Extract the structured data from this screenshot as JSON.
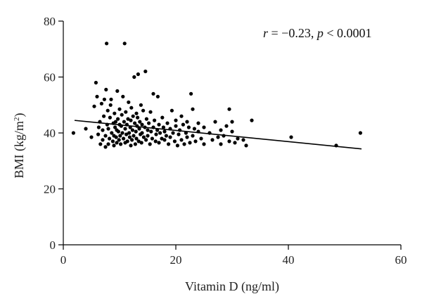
{
  "chart_data": {
    "type": "scatter",
    "title": "",
    "xlabel": "Vitamin D (ng/ml)",
    "ylabel_main": "BMI (kg/m",
    "ylabel_sup": "2",
    "ylabel_close": ")",
    "xlim": [
      0,
      60
    ],
    "ylim": [
      0,
      80
    ],
    "xticks": [
      0,
      20,
      40,
      60
    ],
    "yticks": [
      0,
      20,
      40,
      60,
      80
    ],
    "grid": false,
    "annotation": {
      "r_symbol": "r",
      "r_text": " = −0.23, ",
      "p_symbol": "p",
      "p_text": " < 0.0001"
    },
    "trendline": {
      "x": [
        2,
        53
      ],
      "y": [
        44.5,
        34.3
      ]
    },
    "point_color": "#000000",
    "series": [
      {
        "points": [
          [
            1.8,
            40
          ],
          [
            4,
            41.5
          ],
          [
            5,
            38.5
          ],
          [
            5.5,
            49.5
          ],
          [
            5.8,
            58
          ],
          [
            6,
            53
          ],
          [
            6.2,
            39.5
          ],
          [
            6.3,
            42
          ],
          [
            6.5,
            44
          ],
          [
            6.6,
            36
          ],
          [
            6.8,
            50.5
          ],
          [
            7,
            37.5
          ],
          [
            7,
            41
          ],
          [
            7.2,
            46
          ],
          [
            7.3,
            52
          ],
          [
            7.5,
            35
          ],
          [
            7.5,
            39
          ],
          [
            7.6,
            55.5
          ],
          [
            7.7,
            72
          ],
          [
            7.8,
            43
          ],
          [
            7.9,
            48
          ],
          [
            8,
            36
          ],
          [
            8,
            41.5
          ],
          [
            8.2,
            38
          ],
          [
            8.3,
            45.5
          ],
          [
            8.4,
            50
          ],
          [
            8.5,
            52
          ],
          [
            8.6,
            40
          ],
          [
            8.8,
            37
          ],
          [
            8.9,
            43.5
          ],
          [
            9,
            35.5
          ],
          [
            9,
            39
          ],
          [
            9.1,
            47
          ],
          [
            9.2,
            42
          ],
          [
            9.3,
            44
          ],
          [
            9.4,
            38.5
          ],
          [
            9.5,
            36.5
          ],
          [
            9.5,
            41
          ],
          [
            9.6,
            55
          ],
          [
            9.7,
            45
          ],
          [
            9.8,
            40.5
          ],
          [
            9.9,
            37.5
          ],
          [
            10,
            43
          ],
          [
            10,
            48.5
          ],
          [
            10.1,
            39
          ],
          [
            10.2,
            36
          ],
          [
            10.3,
            42.5
          ],
          [
            10.4,
            46.5
          ],
          [
            10.5,
            40
          ],
          [
            10.6,
            53
          ],
          [
            10.7,
            38
          ],
          [
            10.8,
            44
          ],
          [
            10.9,
            72
          ],
          [
            11,
            36.5
          ],
          [
            11,
            41.5
          ],
          [
            11.1,
            47.5
          ],
          [
            11.2,
            39.5
          ],
          [
            11.3,
            43
          ],
          [
            11.4,
            37
          ],
          [
            11.5,
            45
          ],
          [
            11.6,
            51
          ],
          [
            11.7,
            40
          ],
          [
            11.8,
            38.5
          ],
          [
            11.9,
            42
          ],
          [
            12,
            35.5
          ],
          [
            12,
            44.5
          ],
          [
            12.1,
            49
          ],
          [
            12.2,
            37.5
          ],
          [
            12.3,
            41
          ],
          [
            12.4,
            46
          ],
          [
            12.5,
            39
          ],
          [
            12.6,
            60
          ],
          [
            12.7,
            43.5
          ],
          [
            12.8,
            36
          ],
          [
            12.9,
            40.5
          ],
          [
            13,
            47
          ],
          [
            13,
            38
          ],
          [
            13.1,
            42.5
          ],
          [
            13.2,
            45.5
          ],
          [
            13.3,
            61
          ],
          [
            13.4,
            37
          ],
          [
            13.5,
            41.5
          ],
          [
            13.6,
            44
          ],
          [
            13.7,
            39.5
          ],
          [
            13.8,
            50
          ],
          [
            13.9,
            36.5
          ],
          [
            14,
            43
          ],
          [
            14,
            40
          ],
          [
            14.2,
            48
          ],
          [
            14.3,
            38.5
          ],
          [
            14.5,
            42
          ],
          [
            14.6,
            62
          ],
          [
            14.7,
            37.5
          ],
          [
            14.8,
            45
          ],
          [
            15,
            39
          ],
          [
            15,
            41
          ],
          [
            15.2,
            43.5
          ],
          [
            15.4,
            36
          ],
          [
            15.5,
            47.5
          ],
          [
            15.6,
            40.5
          ],
          [
            15.8,
            38
          ],
          [
            16,
            54
          ],
          [
            16,
            42
          ],
          [
            16.2,
            44.5
          ],
          [
            16.4,
            37
          ],
          [
            16.5,
            39.5
          ],
          [
            16.7,
            41
          ],
          [
            16.8,
            53
          ],
          [
            17,
            36.5
          ],
          [
            17,
            43
          ],
          [
            17.2,
            40
          ],
          [
            17.5,
            38
          ],
          [
            17.6,
            45.5
          ],
          [
            17.8,
            42
          ],
          [
            18,
            37.5
          ],
          [
            18,
            40.5
          ],
          [
            18.3,
            39
          ],
          [
            18.5,
            43.5
          ],
          [
            18.7,
            36
          ],
          [
            19,
            41.5
          ],
          [
            19,
            38.5
          ],
          [
            19.3,
            48
          ],
          [
            19.5,
            40
          ],
          [
            19.8,
            37
          ],
          [
            20,
            42.5
          ],
          [
            20,
            44.5
          ],
          [
            20.3,
            35.5
          ],
          [
            20.5,
            39.5
          ],
          [
            20.7,
            41
          ],
          [
            21,
            37.5
          ],
          [
            21,
            46
          ],
          [
            21.3,
            43
          ],
          [
            21.5,
            36
          ],
          [
            21.8,
            40
          ],
          [
            22,
            38.5
          ],
          [
            22,
            44
          ],
          [
            22.3,
            42
          ],
          [
            22.5,
            36.5
          ],
          [
            22.7,
            54
          ],
          [
            23,
            39
          ],
          [
            23,
            48.5
          ],
          [
            23.3,
            41.5
          ],
          [
            23.5,
            37
          ],
          [
            24,
            43.5
          ],
          [
            24,
            40.5
          ],
          [
            24.5,
            38
          ],
          [
            25,
            36
          ],
          [
            25,
            42
          ],
          [
            26,
            40
          ],
          [
            26.5,
            37.5
          ],
          [
            27,
            44
          ],
          [
            27.5,
            38.5
          ],
          [
            28,
            41
          ],
          [
            28,
            36
          ],
          [
            28.5,
            39
          ],
          [
            29,
            42.5
          ],
          [
            29.5,
            37
          ],
          [
            29.5,
            48.5
          ],
          [
            30,
            40.5
          ],
          [
            30,
            44
          ],
          [
            30.5,
            36.5
          ],
          [
            31,
            38
          ],
          [
            32,
            37.5
          ],
          [
            32.5,
            35.5
          ],
          [
            33.5,
            44.5
          ],
          [
            40.5,
            38.5
          ],
          [
            48.5,
            35.5
          ],
          [
            52.8,
            40
          ]
        ]
      }
    ]
  }
}
